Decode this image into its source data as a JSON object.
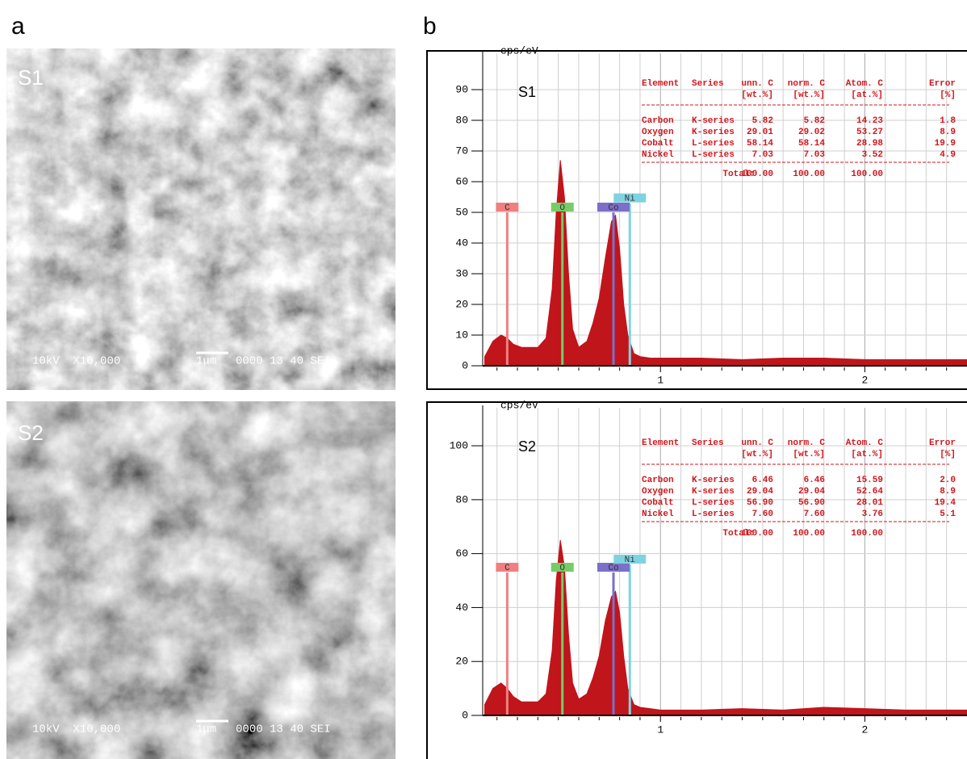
{
  "panels": {
    "a": "a",
    "b": "b"
  },
  "sem": [
    {
      "label": "S1",
      "caption": "10kV  X10,000",
      "scale": "1μm",
      "code": "0000 13 40 SEI"
    },
    {
      "label": "S2",
      "caption": "10kV  X10,000",
      "scale": "1μm",
      "code": "0000 13 40 SEI"
    }
  ],
  "chart_data": [
    {
      "type": "spectrum",
      "label": "S1",
      "y_label": "cps/eV",
      "color": "#c0151b",
      "x": [
        0.14,
        0.18,
        0.22,
        0.25,
        0.28,
        0.32,
        0.36,
        0.4,
        0.44,
        0.47,
        0.49,
        0.51,
        0.53,
        0.55,
        0.57,
        0.6,
        0.64,
        0.67,
        0.7,
        0.73,
        0.76,
        0.78,
        0.8,
        0.82,
        0.84,
        0.87,
        0.9,
        0.95,
        1.0,
        1.2,
        1.4,
        1.6,
        1.8,
        2.0,
        2.2,
        2.4,
        2.5
      ],
      "values": [
        3,
        8,
        10,
        9,
        7,
        6,
        6,
        6,
        9,
        25,
        50,
        67,
        55,
        30,
        12,
        6,
        8,
        14,
        22,
        35,
        47,
        49,
        38,
        20,
        10,
        4,
        3,
        2.5,
        2.5,
        2.5,
        2,
        2.5,
        2.5,
        2,
        2,
        2,
        2
      ],
      "xlim": [
        0.13,
        2.5
      ],
      "ylim": [
        0,
        100
      ],
      "xticks": [
        1,
        2
      ],
      "yticks": [
        0,
        10,
        20,
        30,
        40,
        50,
        60,
        70,
        80,
        90
      ],
      "xminorticks": [
        0.2,
        0.3,
        0.4,
        0.5,
        0.6,
        0.7,
        0.8,
        0.9,
        1.1,
        1.2,
        1.3,
        1.4,
        1.5,
        1.6,
        1.7,
        1.8,
        1.9,
        2.1,
        2.2,
        2.3,
        2.4
      ],
      "grid": true,
      "markers": [
        {
          "label": "C",
          "x": 0.25,
          "height": 50,
          "color": "#f08080"
        },
        {
          "label": "O",
          "x": 0.52,
          "height": 50,
          "color": "#77cc66"
        },
        {
          "label": "Co",
          "x": 0.77,
          "height": 50,
          "color": "#7b6fc9"
        },
        {
          "label": "Ni",
          "x": 0.85,
          "height": 53,
          "color": "#7fd3e0"
        }
      ],
      "table": {
        "columns": [
          "Element",
          "Series",
          "unn. C",
          "norm. C",
          "Atom. C",
          "Error"
        ],
        "units": [
          "[wt.%]",
          "[wt.%]",
          "[at.%]",
          "[%]"
        ],
        "rows": [
          [
            "Carbon",
            "K-series",
            "5.82",
            "5.82",
            "14.23",
            "1.8"
          ],
          [
            "Oxygen",
            "K-series",
            "29.01",
            "29.02",
            "53.27",
            "8.9"
          ],
          [
            "Cobalt",
            "L-series",
            "58.14",
            "58.14",
            "28.98",
            "19.9"
          ],
          [
            "Nickel",
            "L-series",
            "7.03",
            "7.03",
            "3.52",
            "4.9"
          ]
        ],
        "total": [
          "Total:",
          "100.00",
          "100.00",
          "100.00"
        ]
      }
    },
    {
      "type": "spectrum",
      "label": "S2",
      "y_label": "cps/eV",
      "color": "#c0151b",
      "x": [
        0.14,
        0.18,
        0.22,
        0.25,
        0.28,
        0.32,
        0.36,
        0.4,
        0.44,
        0.47,
        0.49,
        0.51,
        0.53,
        0.55,
        0.57,
        0.6,
        0.64,
        0.67,
        0.7,
        0.73,
        0.76,
        0.78,
        0.8,
        0.82,
        0.84,
        0.87,
        0.9,
        0.95,
        1.0,
        1.2,
        1.4,
        1.6,
        1.8,
        2.0,
        2.2,
        2.4,
        2.5
      ],
      "values": [
        4,
        10,
        12,
        10,
        7,
        5,
        5,
        5,
        8,
        24,
        50,
        65,
        55,
        30,
        12,
        6,
        8,
        14,
        22,
        35,
        44,
        46,
        38,
        22,
        10,
        4,
        3,
        2.5,
        2,
        2,
        2.5,
        2,
        3,
        2.5,
        2,
        2,
        2
      ],
      "xlim": [
        0.13,
        2.5
      ],
      "ylim": [
        0,
        112
      ],
      "xticks": [
        1,
        2
      ],
      "yticks": [
        0,
        20,
        40,
        60,
        80,
        100
      ],
      "xminorticks": [
        0.2,
        0.3,
        0.4,
        0.5,
        0.6,
        0.7,
        0.8,
        0.9,
        1.1,
        1.2,
        1.3,
        1.4,
        1.5,
        1.6,
        1.7,
        1.8,
        1.9,
        2.1,
        2.2,
        2.3,
        2.4
      ],
      "grid": true,
      "markers": [
        {
          "label": "C",
          "x": 0.25,
          "height": 53,
          "color": "#f08080"
        },
        {
          "label": "O",
          "x": 0.52,
          "height": 53,
          "color": "#77cc66"
        },
        {
          "label": "Co",
          "x": 0.77,
          "height": 53,
          "color": "#7b6fc9"
        },
        {
          "label": "Ni",
          "x": 0.85,
          "height": 56,
          "color": "#7fd3e0"
        }
      ],
      "table": {
        "columns": [
          "Element",
          "Series",
          "unn. C",
          "norm. C",
          "Atom. C",
          "Error"
        ],
        "units": [
          "[wt.%]",
          "[wt.%]",
          "[at.%]",
          "[%]"
        ],
        "rows": [
          [
            "Carbon",
            "K-series",
            "6.46",
            "6.46",
            "15.59",
            "2.0"
          ],
          [
            "Oxygen",
            "K-series",
            "29.04",
            "29.04",
            "52.64",
            "8.9"
          ],
          [
            "Cobalt",
            "L-series",
            "56.90",
            "56.90",
            "28.01",
            "19.4"
          ],
          [
            "Nickel",
            "L-series",
            "7.60",
            "7.60",
            "3.76",
            "5.1"
          ]
        ],
        "total": [
          "Total:",
          "100.00",
          "100.00",
          "100.00"
        ]
      }
    }
  ]
}
